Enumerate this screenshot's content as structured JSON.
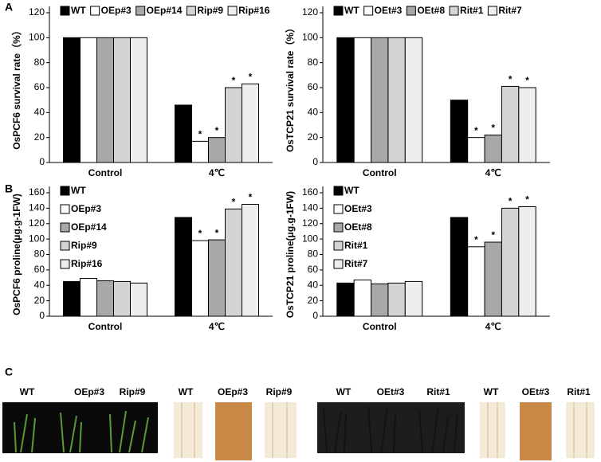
{
  "panel_labels": [
    "A",
    "B",
    "C"
  ],
  "chart_data": [
    {
      "type": "bar",
      "ylabel": "OsPCF6 survival rate（%）",
      "categories": [
        "Control",
        "4℃"
      ],
      "ylim": [
        0,
        120
      ],
      "yticks": [
        0,
        20,
        40,
        60,
        80,
        100,
        120
      ],
      "legend": "top",
      "series": [
        {
          "name": "WT",
          "color": "#000000",
          "values": [
            100,
            46
          ]
        },
        {
          "name": "OEp#3",
          "color": "#ffffff",
          "values": [
            100,
            17
          ],
          "significance": [
            null,
            "*"
          ]
        },
        {
          "name": "OEp#14",
          "color": "#a8a8a8",
          "values": [
            100,
            20
          ],
          "significance": [
            null,
            "*"
          ]
        },
        {
          "name": "Rip#9",
          "color": "#d4d4d4",
          "values": [
            100,
            60
          ],
          "significance": [
            null,
            "*"
          ]
        },
        {
          "name": "Rip#16",
          "color": "#eeeeee",
          "values": [
            100,
            63
          ],
          "significance": [
            null,
            "*"
          ]
        }
      ]
    },
    {
      "type": "bar",
      "ylabel": "OsTCP21 survival rate（%）",
      "categories": [
        "Control",
        "4℃"
      ],
      "ylim": [
        0,
        120
      ],
      "yticks": [
        0,
        20,
        40,
        60,
        80,
        100,
        120
      ],
      "legend": "top",
      "series": [
        {
          "name": "WT",
          "color": "#000000",
          "values": [
            100,
            50
          ]
        },
        {
          "name": "OEt#3",
          "color": "#ffffff",
          "values": [
            100,
            20
          ],
          "significance": [
            null,
            "*"
          ]
        },
        {
          "name": "OEt#8",
          "color": "#a8a8a8",
          "values": [
            100,
            22
          ],
          "significance": [
            null,
            "*"
          ]
        },
        {
          "name": "Rit#1",
          "color": "#d4d4d4",
          "values": [
            100,
            61
          ],
          "significance": [
            null,
            "*"
          ]
        },
        {
          "name": "Rit#7",
          "color": "#eeeeee",
          "values": [
            100,
            60
          ],
          "significance": [
            null,
            "*"
          ]
        }
      ]
    },
    {
      "type": "bar",
      "ylabel": "OsPCF6 proline(μg.g-1FW)",
      "categories": [
        "Control",
        "4℃"
      ],
      "ylim": [
        0,
        160
      ],
      "yticks": [
        0,
        20,
        40,
        60,
        80,
        100,
        120,
        140,
        160
      ],
      "legend": "upper left",
      "series": [
        {
          "name": "WT",
          "color": "#000000",
          "values": [
            45,
            128
          ]
        },
        {
          "name": "OEp#3",
          "color": "#ffffff",
          "values": [
            49,
            98
          ],
          "significance": [
            null,
            "*"
          ]
        },
        {
          "name": "OEp#14",
          "color": "#a8a8a8",
          "values": [
            46,
            99
          ],
          "significance": [
            null,
            "*"
          ]
        },
        {
          "name": "Rip#9",
          "color": "#d4d4d4",
          "values": [
            45,
            139
          ],
          "significance": [
            null,
            "*"
          ]
        },
        {
          "name": "Rip#16",
          "color": "#eeeeee",
          "values": [
            43,
            145
          ],
          "significance": [
            null,
            "*"
          ]
        }
      ]
    },
    {
      "type": "bar",
      "ylabel": "OsTCP21 proline(μg.g-1FW)",
      "categories": [
        "Control",
        "4℃"
      ],
      "ylim": [
        0,
        160
      ],
      "yticks": [
        0,
        20,
        40,
        60,
        80,
        100,
        120,
        140,
        160
      ],
      "legend": "upper left",
      "series": [
        {
          "name": "WT",
          "color": "#000000",
          "values": [
            43,
            128
          ]
        },
        {
          "name": "OEt#3",
          "color": "#ffffff",
          "values": [
            47,
            90
          ],
          "significance": [
            null,
            "*"
          ]
        },
        {
          "name": "OEt#8",
          "color": "#a8a8a8",
          "values": [
            42,
            96
          ],
          "significance": [
            null,
            "*"
          ]
        },
        {
          "name": "Rit#1",
          "color": "#d4d4d4",
          "values": [
            43,
            140
          ],
          "significance": [
            null,
            "*"
          ]
        },
        {
          "name": "Rit#7",
          "color": "#eeeeee",
          "values": [
            45,
            142
          ],
          "significance": [
            null,
            "*"
          ]
        }
      ]
    }
  ],
  "photos": [
    {
      "labels": [
        "WT",
        "OEp#3",
        "Rip#9"
      ]
    },
    {
      "labels": [
        "WT",
        "OEp#3",
        "Rip#9"
      ]
    },
    {
      "labels": [
        "WT",
        "OEt#3",
        "Rit#1"
      ]
    },
    {
      "labels": [
        "WT",
        "OEt#3",
        "Rit#1"
      ]
    }
  ]
}
